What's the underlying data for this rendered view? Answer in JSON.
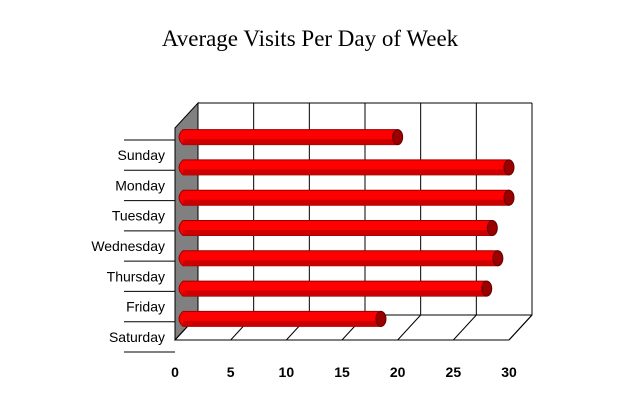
{
  "chart_data": {
    "type": "bar",
    "orientation": "horizontal",
    "three_d": true,
    "title": "Average Visits Per Day of Week",
    "xlabel": "",
    "ylabel": "",
    "categories": [
      "Sunday",
      "Monday",
      "Tuesday",
      "Wednesday",
      "Thursday",
      "Friday",
      "Saturday"
    ],
    "series": [
      {
        "values": [
          20,
          30,
          30,
          28.5,
          29,
          28,
          18.5
        ]
      }
    ],
    "xlim": [
      0,
      30
    ],
    "xticks": [
      "0",
      "5",
      "10",
      "15",
      "20",
      "25",
      "30"
    ],
    "grid": true,
    "legend": "none",
    "colors": {
      "bar": "#ff0000",
      "bar_shade": "#cc0000",
      "bar_dark": "#990000",
      "left_wall": "#808080",
      "grid": "#000000"
    }
  }
}
